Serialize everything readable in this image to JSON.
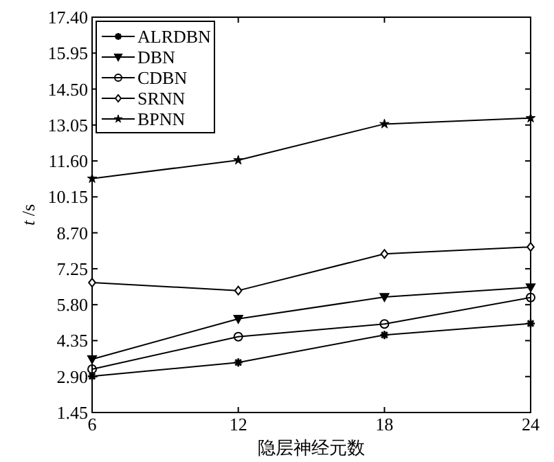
{
  "chart_data": {
    "type": "line",
    "xlabel": "隐层神经元数",
    "ylabel": "*t* /s",
    "x": [
      6,
      12,
      18,
      24
    ],
    "series": [
      {
        "name": "ALRDBN",
        "color": "#000000",
        "marker": "cross",
        "values": [
          2.91,
          3.47,
          4.58,
          5.04
        ]
      },
      {
        "name": "DBN",
        "color": "#000000",
        "marker": "triangle",
        "values": [
          3.6,
          5.23,
          6.11,
          6.5
        ]
      },
      {
        "name": "CDBN",
        "color": "#000000",
        "marker": "circle",
        "values": [
          3.2,
          4.51,
          5.02,
          6.09
        ]
      },
      {
        "name": "SRNN",
        "color": "#000000",
        "marker": "diamond",
        "values": [
          6.69,
          6.37,
          7.85,
          8.13
        ]
      },
      {
        "name": "BPNN",
        "color": "#000000",
        "marker": "star",
        "values": [
          10.89,
          11.63,
          13.09,
          13.33
        ]
      }
    ],
    "xlim": [
      6,
      24
    ],
    "xticks": [
      6,
      12,
      18,
      24
    ],
    "ylim": [
      1.45,
      17.4
    ],
    "yticks": [
      {
        "value": 1.45,
        "label": "1.45"
      },
      {
        "value": 2.9,
        "label": "2.90"
      },
      {
        "value": 4.35,
        "label": "4.35"
      },
      {
        "value": 5.8,
        "label": "5.80"
      },
      {
        "value": 7.25,
        "label": "7.25"
      },
      {
        "value": 8.7,
        "label": "8.70"
      },
      {
        "value": 10.15,
        "label": "10.15"
      },
      {
        "value": 11.6,
        "label": "11.60"
      },
      {
        "value": 13.05,
        "label": "13.05"
      },
      {
        "value": 14.5,
        "label": "14.50"
      },
      {
        "value": 15.95,
        "label": "15.95"
      },
      {
        "value": 17.4,
        "label": "17.40"
      }
    ],
    "grid": false,
    "legend": "top left",
    "line_style": "solid"
  }
}
